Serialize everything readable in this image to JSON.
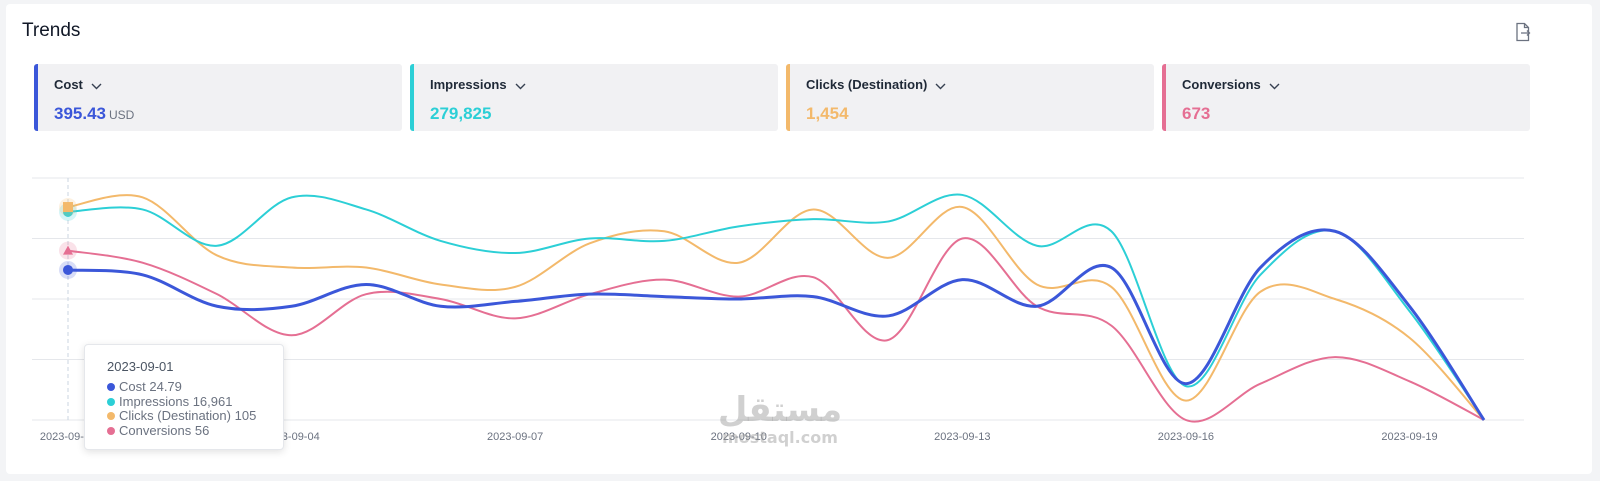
{
  "header": {
    "title": "Trends",
    "export_icon": "file-export-icon"
  },
  "metrics": [
    {
      "label": "Cost",
      "value": "395.43",
      "unit": "USD",
      "color": "#3b57d9"
    },
    {
      "label": "Impressions",
      "value": "279,825",
      "unit": "",
      "color": "#2ccfd6"
    },
    {
      "label": "Clicks (Destination)",
      "value": "1,454",
      "unit": "",
      "color": "#f3b96b"
    },
    {
      "label": "Conversions",
      "value": "673",
      "unit": "",
      "color": "#e56f93"
    }
  ],
  "tooltip": {
    "date": "2023-09-01",
    "rows": [
      {
        "label": "Cost",
        "value": "24.79"
      },
      {
        "label": "Impressions",
        "value": "16,961"
      },
      {
        "label": "Clicks (Destination)",
        "value": "105"
      },
      {
        "label": "Conversions",
        "value": "56"
      }
    ]
  },
  "watermark": {
    "arabic": "مستقل",
    "latin": "mostaql.com"
  },
  "chart_data": {
    "type": "line",
    "x": [
      "2023-09-01",
      "2023-09-02",
      "2023-09-03",
      "2023-09-04",
      "2023-09-05",
      "2023-09-06",
      "2023-09-07",
      "2023-09-08",
      "2023-09-09",
      "2023-09-10",
      "2023-09-11",
      "2023-09-12",
      "2023-09-13",
      "2023-09-14",
      "2023-09-15",
      "2023-09-16",
      "2023-09-17",
      "2023-09-18",
      "2023-09-19",
      "2023-09-20"
    ],
    "x_tick_labels": [
      "2023-09-01",
      "2023-09-04",
      "2023-09-07",
      "2023-09-10",
      "2023-09-13",
      "2023-09-16",
      "2023-09-19"
    ],
    "y_scale": "independent per series (normalized 0–1, no y tick labels)",
    "ylim": [
      0,
      1
    ],
    "grid": true,
    "cursor_x": "2023-09-01",
    "series": [
      {
        "name": "Cost",
        "color": "#3b57d9",
        "marker": "circle",
        "values": [
          0.62,
          0.6,
          0.47,
          0.47,
          0.56,
          0.47,
          0.49,
          0.52,
          0.51,
          0.5,
          0.51,
          0.43,
          0.58,
          0.47,
          0.63,
          0.15,
          0.63,
          0.78,
          0.47,
          0.0
        ]
      },
      {
        "name": "Impressions",
        "color": "#2ccfd6",
        "marker": "circle",
        "values": [
          0.86,
          0.87,
          0.72,
          0.92,
          0.87,
          0.74,
          0.69,
          0.75,
          0.74,
          0.8,
          0.83,
          0.82,
          0.93,
          0.72,
          0.78,
          0.14,
          0.6,
          0.78,
          0.45,
          0.0
        ]
      },
      {
        "name": "Clicks (Destination)",
        "color": "#f3b96b",
        "marker": "square",
        "values": [
          0.88,
          0.92,
          0.68,
          0.63,
          0.63,
          0.56,
          0.55,
          0.73,
          0.78,
          0.65,
          0.87,
          0.67,
          0.88,
          0.56,
          0.55,
          0.08,
          0.53,
          0.5,
          0.34,
          0.0
        ]
      },
      {
        "name": "Conversions",
        "color": "#e56f93",
        "marker": "triangle",
        "values": [
          0.7,
          0.65,
          0.52,
          0.35,
          0.52,
          0.5,
          0.42,
          0.52,
          0.58,
          0.51,
          0.59,
          0.33,
          0.75,
          0.47,
          0.39,
          0.0,
          0.15,
          0.26,
          0.16,
          0.0
        ]
      }
    ]
  }
}
